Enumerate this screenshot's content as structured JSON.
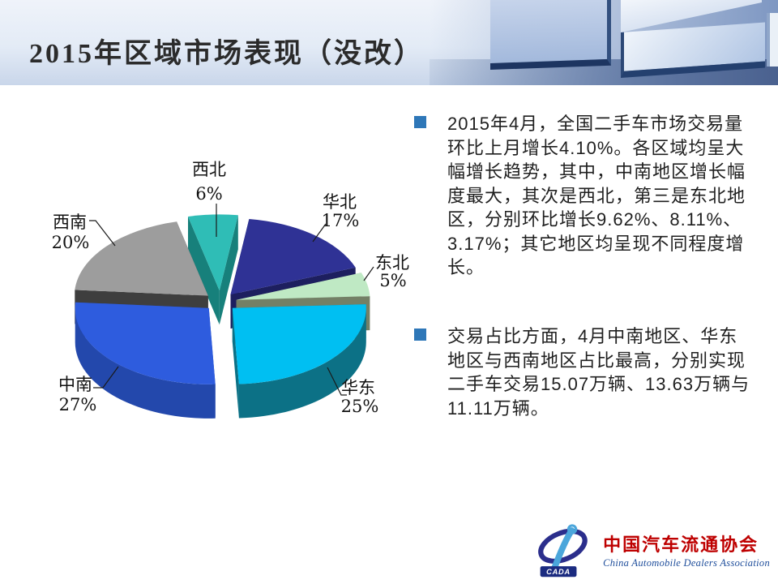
{
  "slide": {
    "title": "2015年区域市场表现（没改）"
  },
  "chart_data": {
    "type": "pie",
    "style": "3d-exploded",
    "unit": "%",
    "direction": "clockwise",
    "start_angle_deg": 8,
    "slices": [
      {
        "label": "华北",
        "value": 17,
        "color": "#2F3295",
        "side_color": "#1D1F5F"
      },
      {
        "label": "东北",
        "value": 5,
        "color": "#BFE9C4",
        "side_color": "#738066"
      },
      {
        "label": "华东",
        "value": 25,
        "color": "#00BFF2",
        "side_color": "#0C7186"
      },
      {
        "label": "中南",
        "value": 27,
        "color": "#2E5CDE",
        "side_color": "#2348AC"
      },
      {
        "label": "西南",
        "value": 20,
        "color": "#9D9D9D",
        "side_color": "#3E3E3E"
      },
      {
        "label": "西北",
        "value": 6,
        "color": "#2FBDB6",
        "side_color": "#17807B"
      }
    ]
  },
  "bullets": {
    "marker_color": "#2E77B8",
    "items": [
      {
        "text": "2015年4月，全国二手车市场交易量\n环比上月增长4.10%。各区域均呈大\n幅增长趋势，其中，中南地区增长幅\n度最大，其次是西北，第三是东北地\n区，分别环比增长9.62%、8.11%、\n3.17%；其它地区均呈现不同程度增\n长。"
      },
      {
        "text": "交易占比方面，4月中南地区、华东\n地区与西南地区占比最高，分别实现\n二手车交易15.07万辆、13.63万辆与\n11.11万辆。"
      }
    ]
  },
  "logo": {
    "acronym": "CADA",
    "name_zh": "中国汽车流通协会",
    "name_en": "China Automobile Dealers Association",
    "name_zh_color": "#BE0000",
    "name_en_color": "#1E4D9B"
  }
}
